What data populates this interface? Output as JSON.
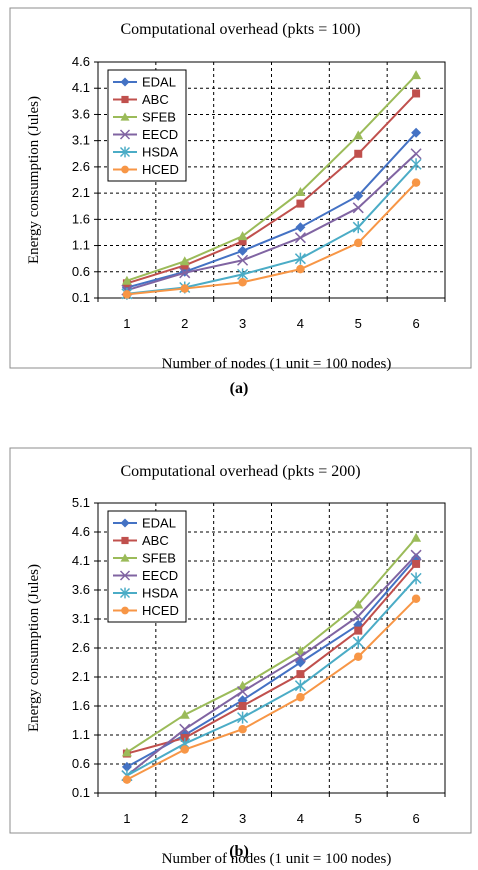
{
  "charts": [
    {
      "caption": "(a)",
      "chart_data": {
        "type": "line",
        "title": "Computational overhead (pkts = 100)",
        "xlabel": "Number of nodes (1 unit = 100 nodes)",
        "ylabel": "Energy consumption (Jules)",
        "categories": [
          "1",
          "2",
          "3",
          "4",
          "5",
          "6"
        ],
        "ylim": [
          0.1,
          4.6
        ],
        "yticks": [
          "0.1",
          "0.6",
          "1.1",
          "1.6",
          "2.1",
          "2.6",
          "3.1",
          "3.6",
          "4.1",
          "4.6"
        ],
        "grid": true,
        "legend_position": "top-left",
        "series": [
          {
            "name": "EDAL",
            "color": "#4472C4",
            "marker": "diamond",
            "values": [
              0.3,
              0.6,
              1.0,
              1.45,
              2.05,
              3.25
            ]
          },
          {
            "name": "ABC",
            "color": "#C0504D",
            "marker": "square",
            "values": [
              0.38,
              0.72,
              1.18,
              1.9,
              2.85,
              4.0
            ]
          },
          {
            "name": "SFEB",
            "color": "#9BBB59",
            "marker": "triangle",
            "values": [
              0.43,
              0.8,
              1.28,
              2.12,
              3.2,
              4.35
            ]
          },
          {
            "name": "EECD",
            "color": "#8064A2",
            "marker": "x",
            "values": [
              0.25,
              0.58,
              0.82,
              1.25,
              1.82,
              2.85
            ]
          },
          {
            "name": "HSDA",
            "color": "#4BACC6",
            "marker": "asterisk",
            "values": [
              0.18,
              0.3,
              0.55,
              0.85,
              1.45,
              2.65
            ]
          },
          {
            "name": "HCED",
            "color": "#F79646",
            "marker": "circle",
            "values": [
              0.17,
              0.28,
              0.4,
              0.65,
              1.15,
              2.3
            ]
          }
        ]
      }
    },
    {
      "caption": "(b)",
      "chart_data": {
        "type": "line",
        "title": "Computational overhead (pkts = 200)",
        "xlabel": "Number of nodes (1 unit = 100 nodes)",
        "ylabel": "Energy consumption (Jules)",
        "categories": [
          "1",
          "2",
          "3",
          "4",
          "5",
          "6"
        ],
        "ylim": [
          0.1,
          5.1
        ],
        "yticks": [
          "0.1",
          "0.6",
          "1.1",
          "1.6",
          "2.1",
          "2.6",
          "3.1",
          "3.6",
          "4.1",
          "4.6",
          "5.1"
        ],
        "grid": true,
        "legend_position": "top-left",
        "series": [
          {
            "name": "EDAL",
            "color": "#4472C4",
            "marker": "diamond",
            "values": [
              0.55,
              1.1,
              1.7,
              2.35,
              3.0,
              4.15
            ]
          },
          {
            "name": "ABC",
            "color": "#C0504D",
            "marker": "square",
            "values": [
              0.78,
              1.05,
              1.6,
              2.15,
              2.9,
              4.05
            ]
          },
          {
            "name": "SFEB",
            "color": "#9BBB59",
            "marker": "triangle",
            "values": [
              0.8,
              1.45,
              1.95,
              2.55,
              3.35,
              4.5
            ]
          },
          {
            "name": "EECD",
            "color": "#8064A2",
            "marker": "x",
            "values": [
              0.4,
              1.2,
              1.85,
              2.45,
              3.15,
              4.2
            ]
          },
          {
            "name": "HSDA",
            "color": "#4BACC6",
            "marker": "asterisk",
            "values": [
              0.4,
              0.95,
              1.4,
              1.95,
              2.7,
              3.8
            ]
          },
          {
            "name": "HCED",
            "color": "#F79646",
            "marker": "circle",
            "values": [
              0.33,
              0.85,
              1.2,
              1.75,
              2.45,
              3.45
            ]
          }
        ]
      }
    }
  ]
}
